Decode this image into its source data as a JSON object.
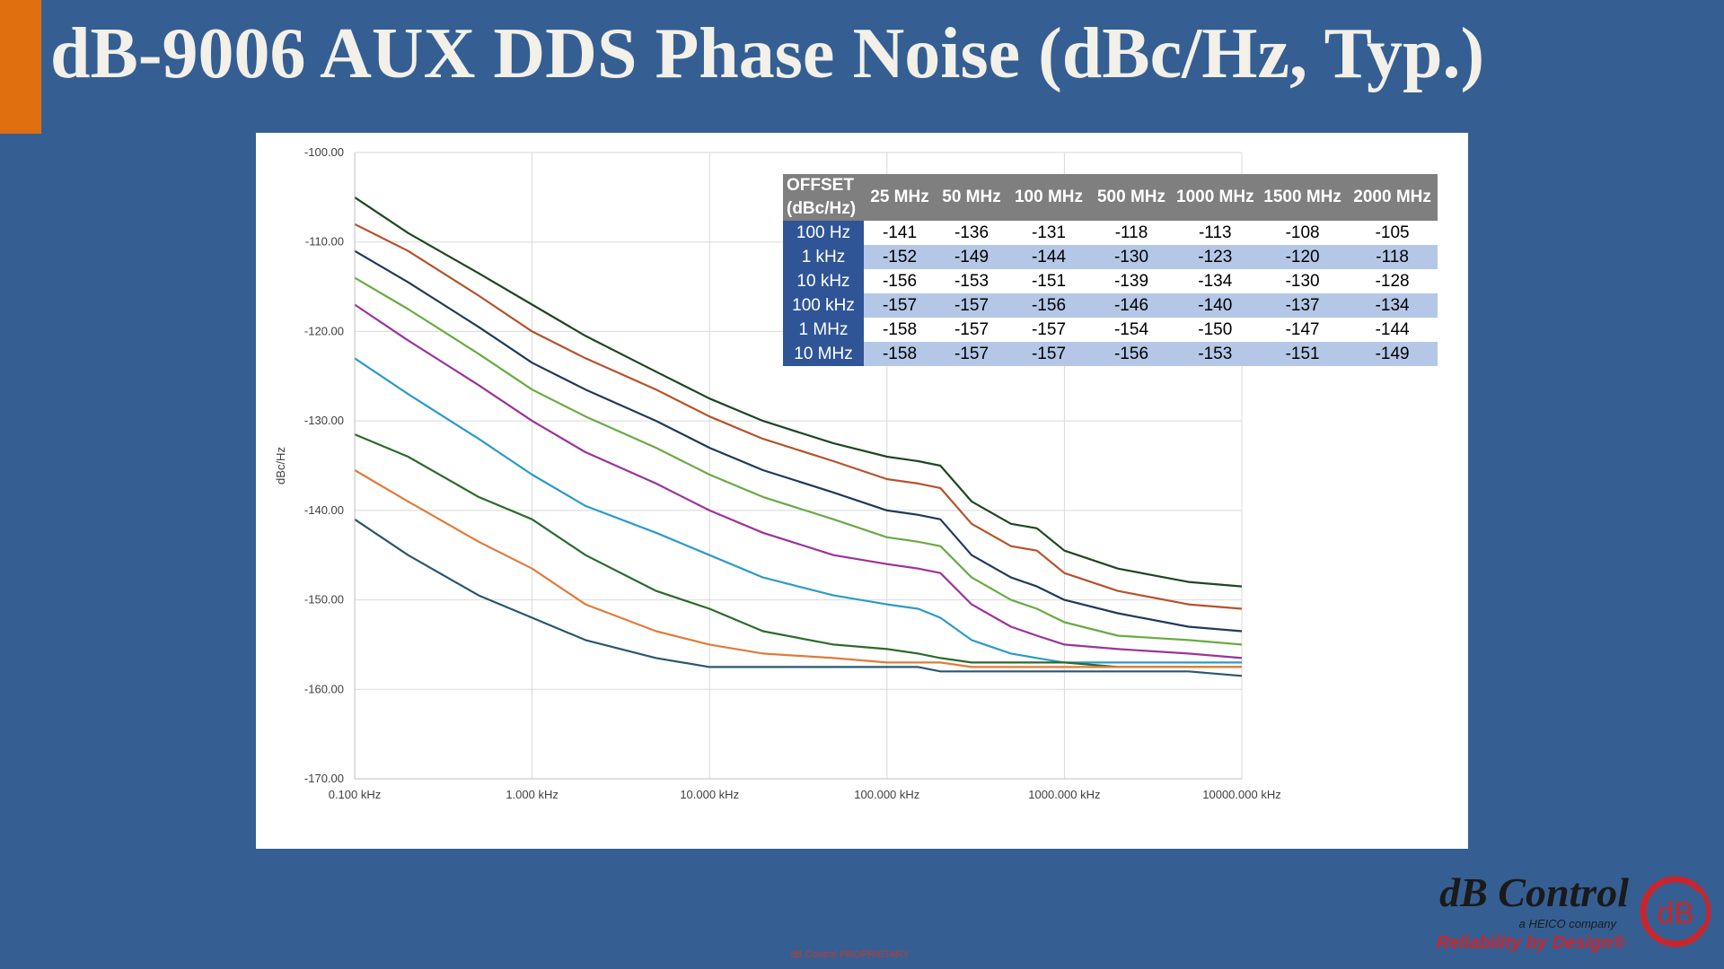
{
  "title": "dB-9006 AUX DDS Phase Noise (dBc/Hz, Typ.)",
  "colors": {
    "background": "#355f93",
    "accent": "#e0700f"
  },
  "table": {
    "header_offset": [
      "OFFSET",
      "(dBc/Hz)"
    ],
    "columns": [
      "25 MHz",
      "50 MHz",
      "100 MHz",
      "500 MHz",
      "1000 MHz",
      "1500 MHz",
      "2000 MHz"
    ],
    "rows": [
      {
        "label": "100 Hz",
        "values": [
          "-141",
          "-136",
          "-131",
          "-118",
          "-113",
          "-108",
          "-105"
        ]
      },
      {
        "label": "1 kHz",
        "values": [
          "-152",
          "-149",
          "-144",
          "-130",
          "-123",
          "-120",
          "-118"
        ]
      },
      {
        "label": "10 kHz",
        "values": [
          "-156",
          "-153",
          "-151",
          "-139",
          "-134",
          "-130",
          "-128"
        ]
      },
      {
        "label": "100 kHz",
        "values": [
          "-157",
          "-157",
          "-156",
          "-146",
          "-140",
          "-137",
          "-134"
        ]
      },
      {
        "label": "1 MHz",
        "values": [
          "-158",
          "-157",
          "-157",
          "-154",
          "-150",
          "-147",
          "-144"
        ]
      },
      {
        "label": "10 MHz",
        "values": [
          "-158",
          "-157",
          "-157",
          "-156",
          "-153",
          "-151",
          "-149"
        ]
      }
    ]
  },
  "chart_data": {
    "type": "line",
    "title": "",
    "xlabel": "",
    "ylabel": "dBc/Hz",
    "x_scale": "log",
    "xlim": [
      0.1,
      10000
    ],
    "ylim": [
      -170,
      -100
    ],
    "grid": true,
    "legend": "none",
    "x_ticks": [
      "0.100 kHz",
      "1.000 kHz",
      "10.000 kHz",
      "100.000 kHz",
      "1000.000 kHz",
      "10000.000 kHz"
    ],
    "y_ticks": [
      "-100.00",
      "-110.00",
      "-120.00",
      "-130.00",
      "-140.00",
      "-150.00",
      "-160.00",
      "-170.00"
    ],
    "x": [
      0.1,
      0.2,
      0.5,
      1,
      2,
      5,
      10,
      20,
      50,
      100,
      150,
      200,
      300,
      500,
      700,
      1000,
      2000,
      5000,
      10000
    ],
    "series": [
      {
        "color": "#1e4620",
        "values": [
          -105,
          -109,
          -113.5,
          -117,
          -120.5,
          -124.5,
          -127.5,
          -130,
          -132.5,
          -134,
          -134.5,
          -135,
          -139,
          -141.5,
          -142,
          -144.5,
          -146.5,
          -148,
          -148.5
        ]
      },
      {
        "color": "#b5532a",
        "values": [
          -108,
          -111,
          -116,
          -120,
          -123,
          -126.5,
          -129.5,
          -132,
          -134.5,
          -136.5,
          -137,
          -137.5,
          -141.5,
          -144,
          -144.5,
          -147,
          -149,
          -150.5,
          -151
        ]
      },
      {
        "color": "#1f3a5a",
        "values": [
          -111,
          -114.5,
          -119.5,
          -123.5,
          -126.5,
          -130,
          -133,
          -135.5,
          -138,
          -140,
          -140.5,
          -141,
          -145,
          -147.5,
          -148.5,
          -150,
          -151.5,
          -153,
          -153.5
        ]
      },
      {
        "color": "#6aaa44",
        "values": [
          -114,
          -117.5,
          -122.5,
          -126.5,
          -129.5,
          -133,
          -136,
          -138.5,
          -141,
          -143,
          -143.5,
          -144,
          -147.5,
          -150,
          -151,
          -152.5,
          -154,
          -154.5,
          -155
        ]
      },
      {
        "color": "#9b339b",
        "values": [
          -117,
          -121,
          -126,
          -130,
          -133.5,
          -137,
          -140,
          -142.5,
          -145,
          -146,
          -146.5,
          -147,
          -150.5,
          -153,
          -154,
          -155,
          -155.5,
          -156,
          -156.5
        ]
      },
      {
        "color": "#2c9bc8",
        "values": [
          -123,
          -127,
          -132,
          -136,
          -139.5,
          -142.5,
          -145,
          -147.5,
          -149.5,
          -150.5,
          -151,
          -152,
          -154.5,
          -156,
          -156.5,
          -157,
          -157,
          -157,
          -157
        ]
      },
      {
        "color": "#2d6a2d",
        "values": [
          -131.5,
          -134,
          -138.5,
          -141,
          -145,
          -149,
          -151,
          -153.5,
          -155,
          -155.5,
          -156,
          -156.5,
          -157,
          -157,
          -157,
          -157,
          -157.5,
          -157.5,
          -157.5
        ]
      },
      {
        "color": "#e07b3a",
        "values": [
          -135.5,
          -139,
          -143.5,
          -146.5,
          -150.5,
          -153.5,
          -155,
          -156,
          -156.5,
          -157,
          -157,
          -157,
          -157.5,
          -157.5,
          -157.5,
          -157.5,
          -157.5,
          -157.5,
          -157.5
        ]
      },
      {
        "color": "#2a5670",
        "values": [
          -141,
          -145,
          -149.5,
          -152,
          -154.5,
          -156.5,
          -157.5,
          -157.5,
          -157.5,
          -157.5,
          -157.5,
          -158,
          -158,
          -158,
          -158,
          -158,
          -158,
          -158,
          -158.5
        ]
      }
    ]
  },
  "footer": {
    "text": "dB Control PROPRIETARY"
  },
  "logo": {
    "brand": "dB Control",
    "subtitle": "a HEICO company",
    "tagline": "Reliability by Design®",
    "mark": "dB"
  }
}
